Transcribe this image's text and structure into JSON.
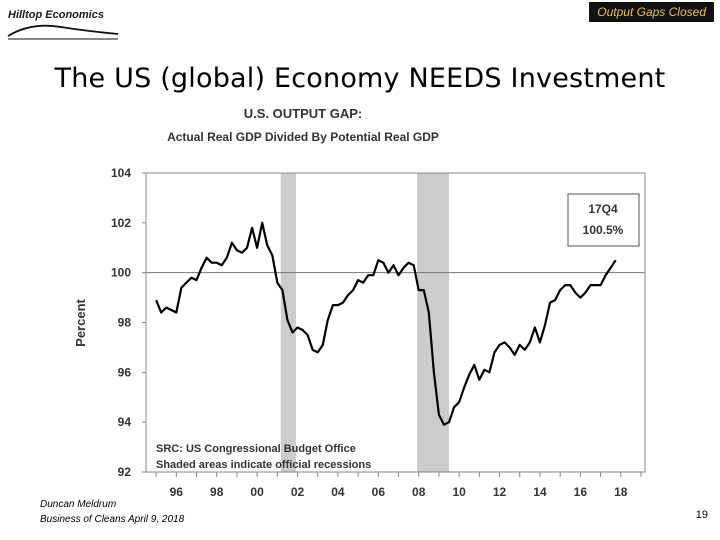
{
  "header": {
    "logo_text": "Hilltop Economics",
    "badge": "Output Gaps Closed",
    "badge_color": "#e8c23a"
  },
  "slide": {
    "title": "The US (global) Economy NEEDS Investment",
    "page_number": "19"
  },
  "footer": {
    "author": "Duncan Meldrum",
    "event": "Business of Cleans April 9, 2018"
  },
  "chart_data": {
    "type": "line",
    "title": "U.S. OUTPUT GAP:",
    "subtitle": "Actual Real GDP Divided By Potential Real GDP",
    "ylabel": "Percent",
    "xlabel": "",
    "ylim": [
      92,
      104
    ],
    "xlim": [
      1994.5,
      2019.2
    ],
    "y_ticks": [
      92,
      94,
      96,
      98,
      100,
      102,
      104
    ],
    "x_ticks": [
      {
        "value": 1996,
        "label": "96"
      },
      {
        "value": 1998,
        "label": "98"
      },
      {
        "value": 2000,
        "label": "00"
      },
      {
        "value": 2002,
        "label": "02"
      },
      {
        "value": 2004,
        "label": "04"
      },
      {
        "value": 2006,
        "label": "06"
      },
      {
        "value": 2008,
        "label": "08"
      },
      {
        "value": 2010,
        "label": "10"
      },
      {
        "value": 2012,
        "label": "12"
      },
      {
        "value": 2014,
        "label": "14"
      },
      {
        "value": 2016,
        "label": "16"
      },
      {
        "value": 2018,
        "label": "18"
      }
    ],
    "reference_line": 100,
    "recessions": [
      [
        2001.17,
        2001.92
      ],
      [
        2007.92,
        2009.5
      ]
    ],
    "line_color": "#000000",
    "recession_color": "#cccccc",
    "annotation": {
      "line1": "17Q4",
      "line2": "100.5%"
    },
    "notes": [
      "SRC: US Congressional Budget Office",
      "Shaded areas indicate official recessions"
    ],
    "series": [
      {
        "name": "Output Gap",
        "points": [
          [
            1995.0,
            98.9
          ],
          [
            1995.25,
            98.4
          ],
          [
            1995.5,
            98.6
          ],
          [
            1995.75,
            98.5
          ],
          [
            1996.0,
            98.4
          ],
          [
            1996.25,
            99.4
          ],
          [
            1996.5,
            99.6
          ],
          [
            1996.75,
            99.8
          ],
          [
            1997.0,
            99.7
          ],
          [
            1997.25,
            100.2
          ],
          [
            1997.5,
            100.6
          ],
          [
            1997.75,
            100.4
          ],
          [
            1998.0,
            100.4
          ],
          [
            1998.25,
            100.3
          ],
          [
            1998.5,
            100.6
          ],
          [
            1998.75,
            101.2
          ],
          [
            1999.0,
            100.9
          ],
          [
            1999.25,
            100.8
          ],
          [
            1999.5,
            101.0
          ],
          [
            1999.75,
            101.8
          ],
          [
            2000.0,
            101.0
          ],
          [
            2000.25,
            102.0
          ],
          [
            2000.5,
            101.1
          ],
          [
            2000.75,
            100.7
          ],
          [
            2001.0,
            99.6
          ],
          [
            2001.25,
            99.3
          ],
          [
            2001.5,
            98.1
          ],
          [
            2001.75,
            97.6
          ],
          [
            2002.0,
            97.8
          ],
          [
            2002.25,
            97.7
          ],
          [
            2002.5,
            97.5
          ],
          [
            2002.75,
            96.9
          ],
          [
            2003.0,
            96.8
          ],
          [
            2003.25,
            97.1
          ],
          [
            2003.5,
            98.1
          ],
          [
            2003.75,
            98.7
          ],
          [
            2004.0,
            98.7
          ],
          [
            2004.25,
            98.8
          ],
          [
            2004.5,
            99.1
          ],
          [
            2004.75,
            99.3
          ],
          [
            2005.0,
            99.7
          ],
          [
            2005.25,
            99.6
          ],
          [
            2005.5,
            99.9
          ],
          [
            2005.75,
            99.9
          ],
          [
            2006.0,
            100.5
          ],
          [
            2006.25,
            100.4
          ],
          [
            2006.5,
            100.0
          ],
          [
            2006.75,
            100.3
          ],
          [
            2007.0,
            99.9
          ],
          [
            2007.25,
            100.2
          ],
          [
            2007.5,
            100.4
          ],
          [
            2007.75,
            100.3
          ],
          [
            2008.0,
            99.3
          ],
          [
            2008.25,
            99.3
          ],
          [
            2008.5,
            98.4
          ],
          [
            2008.75,
            96.0
          ],
          [
            2009.0,
            94.3
          ],
          [
            2009.25,
            93.9
          ],
          [
            2009.5,
            94.0
          ],
          [
            2009.75,
            94.6
          ],
          [
            2010.0,
            94.8
          ],
          [
            2010.25,
            95.4
          ],
          [
            2010.5,
            95.9
          ],
          [
            2010.75,
            96.3
          ],
          [
            2011.0,
            95.7
          ],
          [
            2011.25,
            96.1
          ],
          [
            2011.5,
            96.0
          ],
          [
            2011.75,
            96.8
          ],
          [
            2012.0,
            97.1
          ],
          [
            2012.25,
            97.2
          ],
          [
            2012.5,
            97.0
          ],
          [
            2012.75,
            96.7
          ],
          [
            2013.0,
            97.1
          ],
          [
            2013.25,
            96.9
          ],
          [
            2013.5,
            97.2
          ],
          [
            2013.75,
            97.8
          ],
          [
            2014.0,
            97.2
          ],
          [
            2014.25,
            97.9
          ],
          [
            2014.5,
            98.8
          ],
          [
            2014.75,
            98.9
          ],
          [
            2015.0,
            99.3
          ],
          [
            2015.25,
            99.5
          ],
          [
            2015.5,
            99.5
          ],
          [
            2015.75,
            99.2
          ],
          [
            2016.0,
            99.0
          ],
          [
            2016.25,
            99.2
          ],
          [
            2016.5,
            99.5
          ],
          [
            2016.75,
            99.5
          ],
          [
            2017.0,
            99.5
          ],
          [
            2017.25,
            99.9
          ],
          [
            2017.5,
            100.2
          ],
          [
            2017.75,
            100.5
          ]
        ]
      }
    ]
  }
}
